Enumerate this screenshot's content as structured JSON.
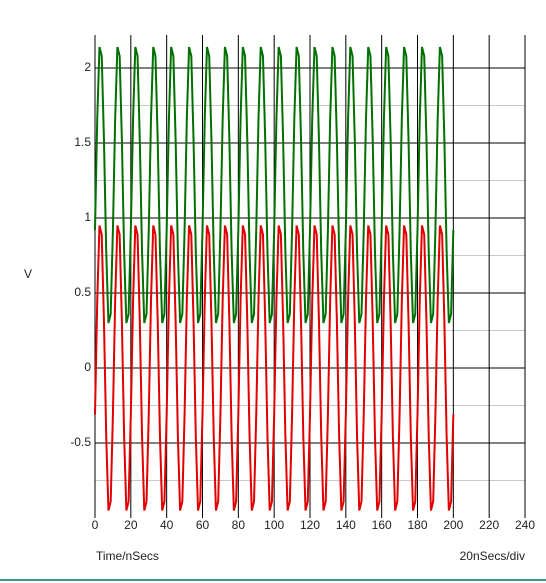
{
  "chart_data": {
    "type": "line",
    "y_label": "V",
    "x_label": "Time/nSecs",
    "x_scale_note": "20nSecs/div",
    "xlim": [
      0,
      240
    ],
    "xticks": [
      0,
      20,
      40,
      60,
      80,
      100,
      120,
      140,
      160,
      180,
      200,
      220,
      240
    ],
    "ylim": [
      -1,
      2.22
    ],
    "yticks": [
      -0.5,
      0,
      0.5,
      1,
      1.5,
      2
    ],
    "y_minor_ticks": [
      -0.75,
      -0.25,
      0.25,
      0.75,
      1.25,
      1.75
    ],
    "grid": true,
    "x": [
      0,
      1.25,
      2.5,
      3.75,
      5,
      6.25,
      7.5,
      8.75,
      10,
      11.25,
      12.5,
      13.75,
      15,
      16.25,
      17.5,
      18.75,
      20,
      21.25,
      22.5,
      23.75,
      25,
      26.25,
      27.5,
      28.75,
      30,
      31.25,
      32.5,
      33.75,
      35,
      36.25,
      37.5,
      38.75,
      40,
      41.25,
      42.5,
      43.75,
      45,
      46.25,
      47.5,
      48.75,
      50,
      51.25,
      52.5,
      53.75,
      55,
      56.25,
      57.5,
      58.75,
      60,
      61.25,
      62.5,
      63.75,
      65,
      66.25,
      67.5,
      68.75,
      70,
      71.25,
      72.5,
      73.75,
      75,
      76.25,
      77.5,
      78.75,
      80,
      81.25,
      82.5,
      83.75,
      85,
      86.25,
      87.5,
      88.75,
      90,
      91.25,
      92.5,
      93.75,
      95,
      96.25,
      97.5,
      98.75,
      100,
      101.25,
      102.5,
      103.75,
      105,
      106.25,
      107.5,
      108.75,
      110,
      111.25,
      112.5,
      113.75,
      115,
      116.25,
      117.5,
      118.75,
      120,
      121.25,
      122.5,
      123.75,
      125,
      126.25,
      127.5,
      128.75,
      130,
      131.25,
      132.5,
      133.75,
      135,
      136.25,
      137.5,
      138.75,
      140,
      141.25,
      142.5,
      143.75,
      145,
      146.25,
      147.5,
      148.75,
      150,
      151.25,
      152.5,
      153.75,
      155,
      156.25,
      157.5,
      158.75,
      160,
      161.25,
      162.5,
      163.75,
      165,
      166.25,
      167.5,
      168.75,
      170,
      171.25,
      172.5,
      173.75,
      175,
      176.25,
      177.5,
      178.75,
      180,
      181.25,
      182.5,
      183.75,
      185,
      186.25,
      187.5,
      188.75,
      190,
      191.25,
      192.5,
      193.75,
      195,
      196.25,
      197.5,
      198.75,
      200
    ],
    "series": [
      {
        "color": "#e00000",
        "values": [
          -0.31,
          0.45,
          0.95,
          0.89,
          0.31,
          -0.45,
          -0.95,
          -0.89,
          -0.31,
          0.45,
          0.95,
          0.89,
          0.31,
          -0.45,
          -0.95,
          -0.89,
          -0.31,
          0.45,
          0.95,
          0.89,
          0.31,
          -0.45,
          -0.95,
          -0.89,
          -0.31,
          0.45,
          0.95,
          0.89,
          0.31,
          -0.45,
          -0.95,
          -0.89,
          -0.31,
          0.45,
          0.95,
          0.89,
          0.31,
          -0.45,
          -0.95,
          -0.89,
          -0.31,
          0.45,
          0.95,
          0.89,
          0.31,
          -0.45,
          -0.95,
          -0.89,
          -0.31,
          0.45,
          0.95,
          0.89,
          0.31,
          -0.45,
          -0.95,
          -0.89,
          -0.31,
          0.45,
          0.95,
          0.89,
          0.31,
          -0.45,
          -0.95,
          -0.89,
          -0.31,
          0.45,
          0.95,
          0.89,
          0.31,
          -0.45,
          -0.95,
          -0.89,
          -0.31,
          0.45,
          0.95,
          0.89,
          0.31,
          -0.45,
          -0.95,
          -0.89,
          -0.31,
          0.45,
          0.95,
          0.89,
          0.31,
          -0.45,
          -0.95,
          -0.89,
          -0.31,
          0.45,
          0.95,
          0.89,
          0.31,
          -0.45,
          -0.95,
          -0.89,
          -0.31,
          0.45,
          0.95,
          0.89,
          0.31,
          -0.45,
          -0.95,
          -0.89,
          -0.31,
          0.45,
          0.95,
          0.89,
          0.31,
          -0.45,
          -0.95,
          -0.89,
          -0.31,
          0.45,
          0.95,
          0.89,
          0.31,
          -0.45,
          -0.95,
          -0.89,
          -0.31,
          0.45,
          0.95,
          0.89,
          0.31,
          -0.45,
          -0.95,
          -0.89,
          -0.31,
          0.45,
          0.95,
          0.89,
          0.31,
          -0.45,
          -0.95,
          -0.89,
          -0.31,
          0.45,
          0.95,
          0.89,
          0.31,
          -0.45,
          -0.95,
          -0.89,
          -0.31,
          0.45,
          0.95,
          0.89,
          0.31,
          -0.45,
          -0.95,
          -0.89,
          -0.31,
          0.45,
          0.95,
          0.89,
          0.31,
          -0.45,
          -0.95,
          -0.89,
          -0.31
        ]
      },
      {
        "color": "#007000",
        "values": [
          0.92,
          1.66,
          2.14,
          2.08,
          1.52,
          0.78,
          0.3,
          0.36,
          0.92,
          1.66,
          2.14,
          2.08,
          1.52,
          0.78,
          0.3,
          0.36,
          0.92,
          1.66,
          2.14,
          2.08,
          1.52,
          0.78,
          0.3,
          0.36,
          0.92,
          1.66,
          2.14,
          2.08,
          1.52,
          0.78,
          0.3,
          0.36,
          0.92,
          1.66,
          2.14,
          2.08,
          1.52,
          0.78,
          0.3,
          0.36,
          0.92,
          1.66,
          2.14,
          2.08,
          1.52,
          0.78,
          0.3,
          0.36,
          0.92,
          1.66,
          2.14,
          2.08,
          1.52,
          0.78,
          0.3,
          0.36,
          0.92,
          1.66,
          2.14,
          2.08,
          1.52,
          0.78,
          0.3,
          0.36,
          0.92,
          1.66,
          2.14,
          2.08,
          1.52,
          0.78,
          0.3,
          0.36,
          0.92,
          1.66,
          2.14,
          2.08,
          1.52,
          0.78,
          0.3,
          0.36,
          0.92,
          1.66,
          2.14,
          2.08,
          1.52,
          0.78,
          0.3,
          0.36,
          0.92,
          1.66,
          2.14,
          2.08,
          1.52,
          0.78,
          0.3,
          0.36,
          0.92,
          1.66,
          2.14,
          2.08,
          1.52,
          0.78,
          0.3,
          0.36,
          0.92,
          1.66,
          2.14,
          2.08,
          1.52,
          0.78,
          0.3,
          0.36,
          0.92,
          1.66,
          2.14,
          2.08,
          1.52,
          0.78,
          0.3,
          0.36,
          0.92,
          1.66,
          2.14,
          2.08,
          1.52,
          0.78,
          0.3,
          0.36,
          0.92,
          1.66,
          2.14,
          2.08,
          1.52,
          0.78,
          0.3,
          0.36,
          0.92,
          1.66,
          2.14,
          2.08,
          1.52,
          0.78,
          0.3,
          0.36,
          0.92,
          1.66,
          2.14,
          2.08,
          1.52,
          0.78,
          0.3,
          0.36,
          0.92,
          1.66,
          2.14,
          2.08,
          1.52,
          0.78,
          0.3,
          0.36,
          0.92
        ]
      }
    ]
  }
}
